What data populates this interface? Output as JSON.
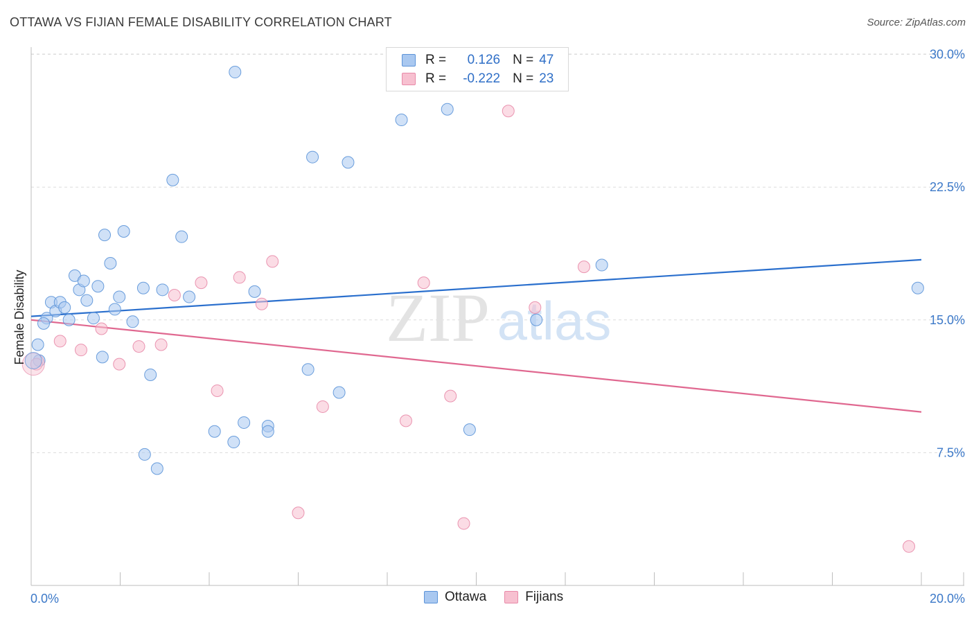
{
  "title": "OTTAWA VS FIJIAN FEMALE DISABILITY CORRELATION CHART",
  "source": "Source: ZipAtlas.com",
  "watermark": {
    "zip": "ZIP",
    "atlas": "atlas"
  },
  "colors": {
    "ottawa_fill": "#a9c8f0",
    "ottawa_stroke": "#5b93d8",
    "ottawa_line": "#2a6fcd",
    "fijians_fill": "#f7c0d0",
    "fijians_stroke": "#e889a8",
    "fijians_line": "#e06890",
    "tick_text": "#3b78c8",
    "grid": "#dcdcdc"
  },
  "legend": {
    "ottawa": {
      "r_label": "R =",
      "r_value": "0.126",
      "n_label": "N =",
      "n_value": "47"
    },
    "fijians": {
      "r_label": "R =",
      "r_value": "-0.222",
      "n_label": "N =",
      "n_value": "23"
    }
  },
  "chart_data": {
    "type": "scatter",
    "title": "OTTAWA VS FIJIAN FEMALE DISABILITY CORRELATION CHART",
    "xlabel": "",
    "ylabel": "Female Disability",
    "xlim": [
      0,
      20
    ],
    "ylim": [
      0,
      30
    ],
    "x_tick_labels": [
      "0.0%",
      "20.0%"
    ],
    "y_ticks": [
      7.5,
      15.0,
      22.5,
      30.0
    ],
    "y_tick_labels": [
      "7.5%",
      "15.0%",
      "22.5%",
      "30.0%"
    ],
    "x_minor_ticks": [
      0,
      2,
      4,
      6,
      8,
      10,
      12,
      14,
      16,
      18,
      20
    ],
    "grid": true,
    "legend_position": "top-center",
    "series": [
      {
        "name": "Ottawa",
        "points": [
          [
            0.15,
            13.6
          ],
          [
            0.35,
            15.1
          ],
          [
            0.28,
            14.8
          ],
          [
            0.45,
            16.0
          ],
          [
            0.55,
            15.5
          ],
          [
            0.65,
            16.0
          ],
          [
            0.75,
            15.7
          ],
          [
            0.85,
            15.0
          ],
          [
            0.98,
            17.5
          ],
          [
            1.08,
            16.7
          ],
          [
            1.18,
            17.2
          ],
          [
            1.25,
            16.1
          ],
          [
            1.4,
            15.1
          ],
          [
            1.5,
            16.9
          ],
          [
            1.6,
            12.9
          ],
          [
            1.65,
            19.8
          ],
          [
            1.78,
            18.2
          ],
          [
            1.88,
            15.6
          ],
          [
            1.98,
            16.3
          ],
          [
            2.08,
            20.0
          ],
          [
            2.28,
            14.9
          ],
          [
            2.52,
            16.8
          ],
          [
            2.68,
            11.9
          ],
          [
            2.83,
            6.6
          ],
          [
            2.95,
            16.7
          ],
          [
            3.18,
            22.9
          ],
          [
            3.38,
            19.7
          ],
          [
            3.55,
            16.3
          ],
          [
            4.12,
            8.7
          ],
          [
            4.58,
            29.0
          ],
          [
            4.55,
            8.1
          ],
          [
            4.78,
            9.2
          ],
          [
            5.02,
            16.6
          ],
          [
            5.32,
            9.0
          ],
          [
            5.32,
            8.7
          ],
          [
            6.22,
            12.2
          ],
          [
            6.32,
            24.2
          ],
          [
            6.92,
            10.9
          ],
          [
            7.12,
            23.9
          ],
          [
            8.32,
            26.3
          ],
          [
            9.35,
            26.9
          ],
          [
            9.85,
            8.8
          ],
          [
            11.35,
            15.0
          ],
          [
            12.82,
            18.1
          ],
          [
            19.92,
            16.8
          ],
          [
            2.55,
            7.4
          ],
          [
            0.18,
            12.7
          ]
        ]
      },
      {
        "name": "Fijians",
        "points": [
          [
            0.12,
            12.5
          ],
          [
            0.65,
            13.8
          ],
          [
            1.12,
            13.3
          ],
          [
            1.58,
            14.5
          ],
          [
            1.98,
            12.5
          ],
          [
            2.42,
            13.5
          ],
          [
            2.92,
            13.6
          ],
          [
            3.22,
            16.4
          ],
          [
            3.82,
            17.1
          ],
          [
            4.18,
            11.0
          ],
          [
            4.68,
            17.4
          ],
          [
            5.18,
            15.9
          ],
          [
            5.42,
            18.3
          ],
          [
            6.0,
            4.1
          ],
          [
            6.55,
            10.1
          ],
          [
            8.42,
            9.3
          ],
          [
            8.82,
            17.1
          ],
          [
            9.42,
            10.7
          ],
          [
            9.72,
            3.5
          ],
          [
            10.72,
            26.8
          ],
          [
            11.32,
            15.7
          ],
          [
            12.42,
            18.0
          ],
          [
            19.72,
            2.2
          ]
        ]
      }
    ],
    "trend_lines": [
      {
        "name": "Ottawa",
        "x": [
          0,
          20
        ],
        "y": [
          15.2,
          18.4
        ]
      },
      {
        "name": "Fijians",
        "x": [
          0,
          20
        ],
        "y": [
          15.0,
          9.8
        ]
      }
    ]
  }
}
